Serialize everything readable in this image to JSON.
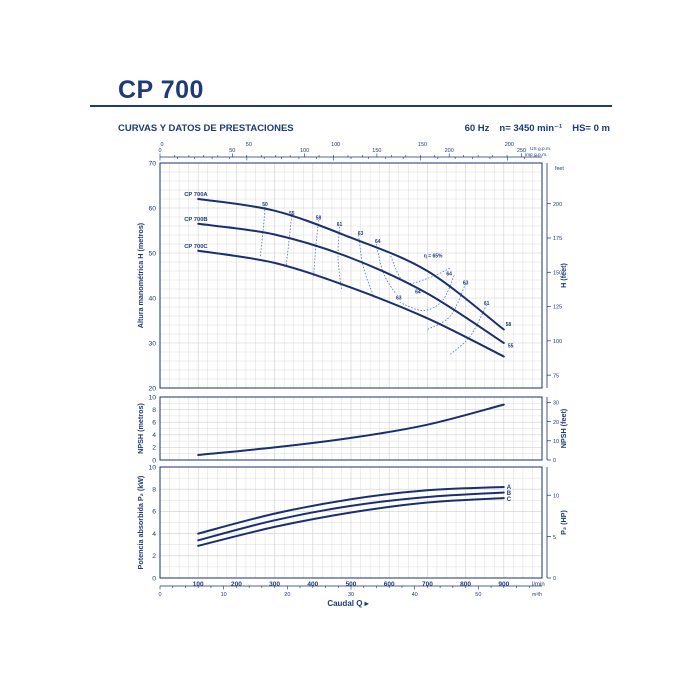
{
  "header": {
    "model": "CP 700",
    "subtitle": "CURVAS Y DATOS DE PRESTACIONES",
    "frequency": "60 Hz",
    "speed": "n= 3450 min⁻¹",
    "hs": "HS= 0 m"
  },
  "chart_data": [
    {
      "type": "line",
      "panel": "head",
      "ylabel": "Altura manométrica H (metros)",
      "ylabel_right": "H (feet)",
      "top_axis_labels": [
        "US g.p.m.",
        "imp g.p.m."
      ],
      "yticks": [
        20,
        30,
        40,
        50,
        60,
        70
      ],
      "ylim": [
        20,
        70
      ],
      "ylim_right_ticks": [
        75,
        100,
        125,
        150,
        175,
        200
      ],
      "right_unit": "feet",
      "top_us_ticks": [
        0,
        50,
        100,
        150,
        200,
        250
      ],
      "top_imp_ticks": [
        0,
        50,
        100,
        150,
        200
      ],
      "series": [
        {
          "name": "CP 700A",
          "x": [
            100,
            300,
            500,
            700,
            900
          ],
          "y": [
            62.0,
            59.4,
            53.4,
            46.0,
            33.0
          ]
        },
        {
          "name": "CP 700B",
          "x": [
            100,
            300,
            500,
            700,
            900
          ],
          "y": [
            56.5,
            54.1,
            48.9,
            41.0,
            30.0
          ]
        },
        {
          "name": "CP 700C",
          "x": [
            100,
            300,
            500,
            700,
            900
          ],
          "y": [
            50.5,
            47.8,
            42.3,
            35.5,
            27.0
          ]
        }
      ],
      "efficiency_labels": [
        {
          "text": "50",
          "x": 275,
          "y": 60.5
        },
        {
          "text": "55",
          "x": 345,
          "y": 58.5
        },
        {
          "text": "58",
          "x": 415,
          "y": 57.5
        },
        {
          "text": "61",
          "x": 470,
          "y": 56.0
        },
        {
          "text": "63",
          "x": 525,
          "y": 54.0
        },
        {
          "text": "64",
          "x": 570,
          "y": 52.2
        },
        {
          "text": "η = 65%",
          "x": 715,
          "y": 49.0
        },
        {
          "text": "64",
          "x": 757,
          "y": 45.0
        },
        {
          "text": "63",
          "x": 800,
          "y": 43.0
        },
        {
          "text": "61",
          "x": 855,
          "y": 38.5
        },
        {
          "text": "58",
          "x": 912,
          "y": 33.8
        },
        {
          "text": "55",
          "x": 918,
          "y": 29.0
        },
        {
          "text": "64",
          "x": 675,
          "y": 41.0
        },
        {
          "text": "63",
          "x": 625,
          "y": 39.7
        }
      ]
    },
    {
      "type": "line",
      "panel": "npsh",
      "ylabel": "NPSH (metros)",
      "ylabel_right": "NPSH (feet)",
      "yticks": [
        0,
        2,
        4,
        6,
        8,
        10
      ],
      "ylim": [
        0,
        10
      ],
      "ylim_right_ticks": [
        0,
        10,
        20,
        30
      ],
      "series": [
        {
          "name": "NPSH",
          "x": [
            100,
            300,
            500,
            700,
            900
          ],
          "y": [
            0.8,
            2.0,
            3.5,
            5.6,
            8.8
          ]
        }
      ]
    },
    {
      "type": "line",
      "panel": "power",
      "ylabel": "Potencia absorbida P₂ (kW)",
      "ylabel_right": "P₂ (HP)",
      "yticks": [
        0,
        2,
        4,
        6,
        8,
        10
      ],
      "ylim": [
        0,
        10
      ],
      "ylim_right_ticks": [
        0,
        5,
        10
      ],
      "xlabel": "Caudal Q",
      "x_unit": "l/min",
      "x_unit_2": "m³/h",
      "xticks": [
        100,
        200,
        300,
        400,
        500,
        600,
        700,
        800,
        900
      ],
      "xlim": [
        0,
        1000
      ],
      "x2_ticks": [
        0,
        10,
        20,
        30,
        40,
        50
      ],
      "series": [
        {
          "name": "A",
          "x": [
            100,
            300,
            500,
            700,
            900
          ],
          "y": [
            4.0,
            5.8,
            7.1,
            7.9,
            8.2
          ]
        },
        {
          "name": "B",
          "x": [
            100,
            300,
            500,
            700,
            900
          ],
          "y": [
            3.4,
            5.2,
            6.5,
            7.3,
            7.7
          ]
        },
        {
          "name": "C",
          "x": [
            100,
            300,
            500,
            700,
            900
          ],
          "y": [
            2.9,
            4.6,
            5.9,
            6.8,
            7.2
          ]
        }
      ]
    }
  ],
  "colors": {
    "curve": "#1b2f6e",
    "grid": "#cfcfcf",
    "frame": "#1b2f6e",
    "dotted": "#4a78c0",
    "text": "#1d3a7a"
  }
}
